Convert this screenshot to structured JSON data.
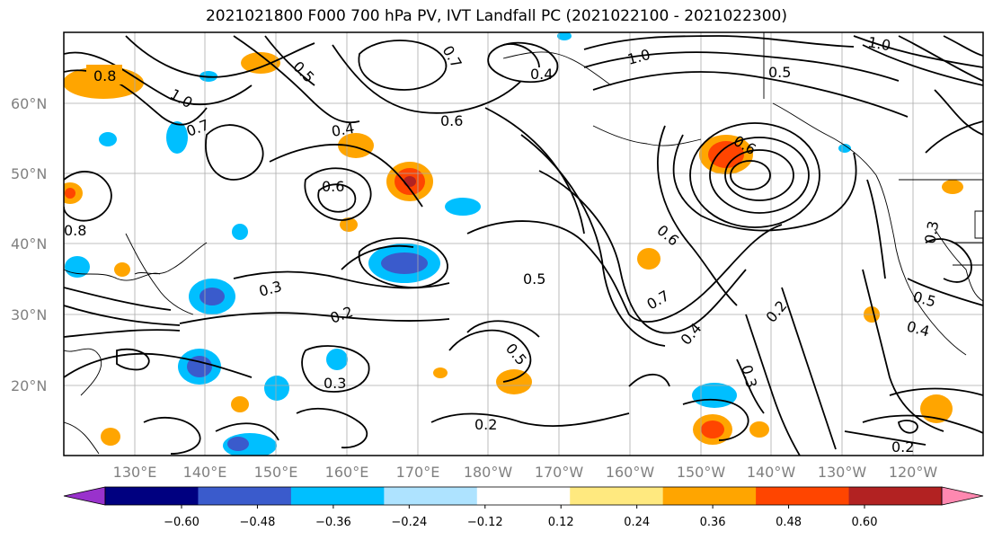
{
  "title": "2021021800 F000 700 hPa PV, IVT Landfall PC (2021022100 - 2021022300)",
  "lat_labels": [
    "60°N",
    "50°N",
    "40°N",
    "30°N",
    "20°N"
  ],
  "lon_labels": [
    "130°E",
    "140°E",
    "150°E",
    "160°E",
    "170°E",
    "180°W",
    "170°W",
    "160°W",
    "150°W",
    "140°W",
    "130°W",
    "120°W"
  ],
  "colorbar": {
    "ticks": [
      "−0.60",
      "−0.48",
      "−0.36",
      "−0.24",
      "−0.12",
      "0.12",
      "0.24",
      "0.36",
      "0.48",
      "0.60"
    ],
    "colors": [
      "#9932cc",
      "#000080",
      "#3a5bcc",
      "#00bfff",
      "#aee3ff",
      "#ffffff",
      "#ffe97f",
      "#ffa500",
      "#ff4500",
      "#b22222",
      "#ff88b0"
    ]
  },
  "contour_labels": [
    "0.8",
    "1.0",
    "0.7",
    "0.5",
    "0.4",
    "0.6",
    "0.3",
    "0.2",
    "0.8",
    "0.7",
    "0.6",
    "0.5",
    "0.4",
    "0.3",
    "0.2",
    "1.0",
    "0.5",
    "0.6",
    "0.7",
    "0.4",
    "0.3",
    "0.2",
    "0.5",
    "0.4",
    "0.3",
    "0.2",
    "1.0",
    "0.6",
    "0.5"
  ]
}
